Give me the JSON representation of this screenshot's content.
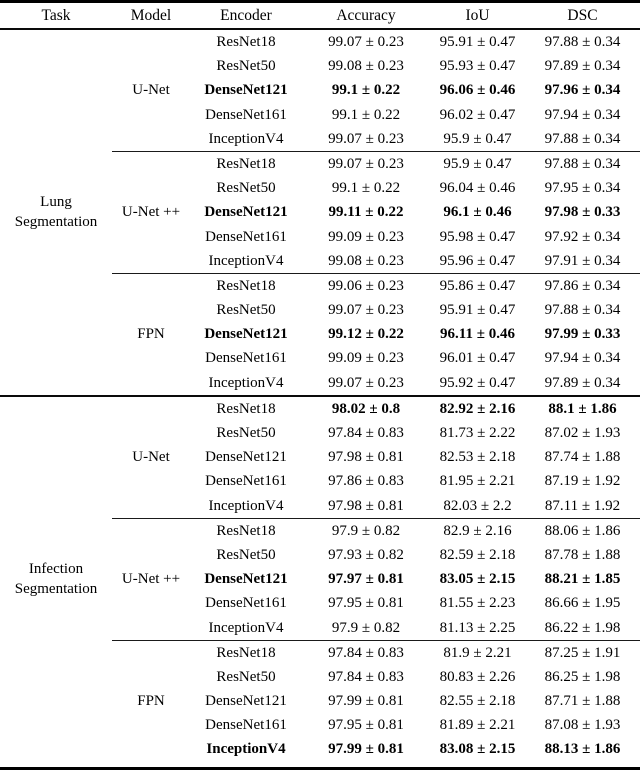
{
  "table": {
    "columns": [
      "Task",
      "Model",
      "Encoder",
      "Accuracy",
      "IoU",
      "DSC"
    ],
    "tasks": [
      {
        "label": "Lung Segmentation",
        "models": [
          {
            "label": "U-Net",
            "rows": [
              {
                "encoder": "ResNet18",
                "accuracy": "99.07 ± 0.23",
                "iou": "95.91 ± 0.47",
                "dsc": "97.88 ± 0.34",
                "emphasis": "none"
              },
              {
                "encoder": "ResNet50",
                "accuracy": "99.08 ± 0.23",
                "iou": "95.93 ± 0.47",
                "dsc": "97.89 ± 0.34",
                "emphasis": "none"
              },
              {
                "encoder": "DenseNet121",
                "accuracy": "99.1 ± 0.22",
                "iou": "96.06 ± 0.46",
                "dsc": "97.96 ± 0.34",
                "emphasis": "row"
              },
              {
                "encoder": "DenseNet161",
                "accuracy": "99.1 ± 0.22",
                "iou": "96.02 ± 0.47",
                "dsc": "97.94 ± 0.34",
                "emphasis": "none"
              },
              {
                "encoder": "InceptionV4",
                "accuracy": "99.07 ± 0.23",
                "iou": "95.9 ± 0.47",
                "dsc": "97.88 ± 0.34",
                "emphasis": "none"
              }
            ]
          },
          {
            "label": "U-Net ++",
            "rows": [
              {
                "encoder": "ResNet18",
                "accuracy": "99.07 ± 0.23",
                "iou": "95.9 ± 0.47",
                "dsc": "97.88 ± 0.34",
                "emphasis": "none"
              },
              {
                "encoder": "ResNet50",
                "accuracy": "99.1 ± 0.22",
                "iou": "96.04 ± 0.46",
                "dsc": "97.95 ± 0.34",
                "emphasis": "none"
              },
              {
                "encoder": "DenseNet121",
                "accuracy": "99.11 ± 0.22",
                "iou": "96.1 ± 0.46",
                "dsc": "97.98 ± 0.33",
                "emphasis": "row"
              },
              {
                "encoder": "DenseNet161",
                "accuracy": "99.09 ± 0.23",
                "iou": "95.98 ± 0.47",
                "dsc": "97.92 ± 0.34",
                "emphasis": "none"
              },
              {
                "encoder": "InceptionV4",
                "accuracy": "99.08 ± 0.23",
                "iou": "95.96 ± 0.47",
                "dsc": "97.91 ± 0.34",
                "emphasis": "none"
              }
            ]
          },
          {
            "label": "FPN",
            "rows": [
              {
                "encoder": "ResNet18",
                "accuracy": "99.06 ± 0.23",
                "iou": "95.86 ± 0.47",
                "dsc": "97.86 ± 0.34",
                "emphasis": "none"
              },
              {
                "encoder": "ResNet50",
                "accuracy": "99.07 ± 0.23",
                "iou": "95.91 ± 0.47",
                "dsc": "97.88 ± 0.34",
                "emphasis": "none"
              },
              {
                "encoder": "DenseNet121",
                "accuracy": "99.12 ± 0.22",
                "iou": "96.11 ± 0.46",
                "dsc": "97.99 ± 0.33",
                "emphasis": "row"
              },
              {
                "encoder": "DenseNet161",
                "accuracy": "99.09 ± 0.23",
                "iou": "96.01 ± 0.47",
                "dsc": "97.94 ± 0.34",
                "emphasis": "none"
              },
              {
                "encoder": "InceptionV4",
                "accuracy": "99.07 ± 0.23",
                "iou": "95.92 ± 0.47",
                "dsc": "97.89 ± 0.34",
                "emphasis": "none"
              }
            ]
          }
        ]
      },
      {
        "label": "Infection Segmentation",
        "models": [
          {
            "label": "U-Net",
            "rows": [
              {
                "encoder": "ResNet18",
                "accuracy": "98.02 ± 0.8",
                "iou": "82.92 ± 2.16",
                "dsc": "88.1 ± 1.86",
                "emphasis": "values"
              },
              {
                "encoder": "ResNet50",
                "accuracy": "97.84 ± 0.83",
                "iou": "81.73 ± 2.22",
                "dsc": "87.02 ± 1.93",
                "emphasis": "none"
              },
              {
                "encoder": "DenseNet121",
                "accuracy": "97.98 ± 0.81",
                "iou": "82.53 ± 2.18",
                "dsc": "87.74 ± 1.88",
                "emphasis": "none"
              },
              {
                "encoder": "DenseNet161",
                "accuracy": "97.86 ± 0.83",
                "iou": "81.95 ± 2.21",
                "dsc": "87.19 ± 1.92",
                "emphasis": "none"
              },
              {
                "encoder": "InceptionV4",
                "accuracy": "97.98 ± 0.81",
                "iou": "82.03 ± 2.2",
                "dsc": "87.11 ± 1.92",
                "emphasis": "none"
              }
            ]
          },
          {
            "label": "U-Net ++",
            "rows": [
              {
                "encoder": "ResNet18",
                "accuracy": "97.9 ± 0.82",
                "iou": "82.9 ± 2.16",
                "dsc": "88.06 ± 1.86",
                "emphasis": "none"
              },
              {
                "encoder": "ResNet50",
                "accuracy": "97.93 ± 0.82",
                "iou": "82.59 ± 2.18",
                "dsc": "87.78 ± 1.88",
                "emphasis": "none"
              },
              {
                "encoder": "DenseNet121",
                "accuracy": "97.97 ± 0.81",
                "iou": "83.05 ± 2.15",
                "dsc": "88.21 ± 1.85",
                "emphasis": "row"
              },
              {
                "encoder": "DenseNet161",
                "accuracy": "97.95 ± 0.81",
                "iou": "81.55 ± 2.23",
                "dsc": "86.66 ± 1.95",
                "emphasis": "none"
              },
              {
                "encoder": "InceptionV4",
                "accuracy": "97.9 ± 0.82",
                "iou": "81.13 ± 2.25",
                "dsc": "86.22 ± 1.98",
                "emphasis": "none"
              }
            ]
          },
          {
            "label": "FPN",
            "rows": [
              {
                "encoder": "ResNet18",
                "accuracy": "97.84 ± 0.83",
                "iou": "81.9 ± 2.21",
                "dsc": "87.25 ± 1.91",
                "emphasis": "none"
              },
              {
                "encoder": "ResNet50",
                "accuracy": "97.84 ± 0.83",
                "iou": "80.83 ± 2.26",
                "dsc": "86.25 ± 1.98",
                "emphasis": "none"
              },
              {
                "encoder": "DenseNet121",
                "accuracy": "97.99 ± 0.81",
                "iou": "82.55 ± 2.18",
                "dsc": "87.71 ± 1.88",
                "emphasis": "none"
              },
              {
                "encoder": "DenseNet161",
                "accuracy": "97.95 ± 0.81",
                "iou": "81.89 ± 2.21",
                "dsc": "87.08 ± 1.93",
                "emphasis": "none"
              },
              {
                "encoder": "InceptionV4",
                "accuracy": "97.99 ± 0.81",
                "iou": "83.08 ± 2.15",
                "dsc": "88.13 ± 1.86",
                "emphasis": "row"
              }
            ]
          }
        ]
      }
    ]
  }
}
